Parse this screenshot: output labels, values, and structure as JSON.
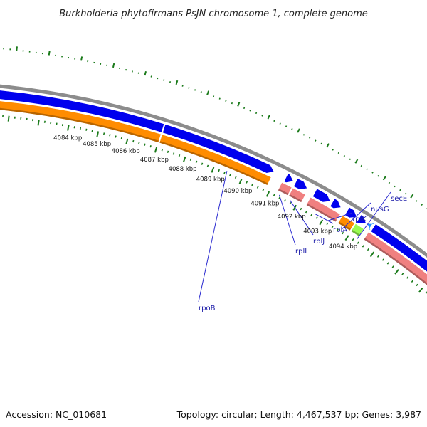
{
  "title": "Burkholderia phytofirmans PsJN chromosome 1, complete genome",
  "footer": {
    "accession": "Accession: NC_010681",
    "topology": "Topology: circular; Length: 4,467,537 bp; Genes: 3,987"
  },
  "colors": {
    "background": "#ffffff",
    "backbone": "#8c8c8c",
    "forward_gene": "#0000ee",
    "reverse_gene": "#ff8c00",
    "rrna_gene": "#f08080",
    "misc_gene": "#98fb50",
    "trna_gene": "#1e90ff",
    "tick": "#1a7a1a",
    "label": "#1a1aa8"
  },
  "scale": {
    "unit": "kbp",
    "tick_labels": [
      "4084 kbp",
      "4085 kbp",
      "4086 kbp",
      "4087 kbp",
      "4088 kbp",
      "4089 kbp",
      "4090 kbp",
      "4091 kbp",
      "4092 kbp",
      "4093 kbp",
      "4094 kbp"
    ]
  },
  "genes": [
    {
      "name": "rpoB"
    },
    {
      "name": "rplL"
    },
    {
      "name": "rplJ"
    },
    {
      "name": "rplA"
    },
    {
      "name": "rplK"
    },
    {
      "name": "nusG"
    },
    {
      "name": "secE"
    }
  ]
}
